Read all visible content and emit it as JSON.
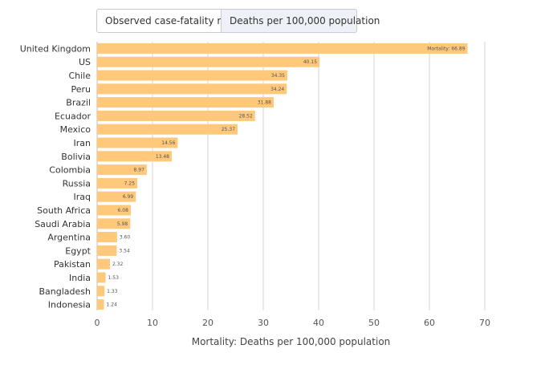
{
  "tabs": [
    {
      "label": "Observed case-fatality ratio",
      "active": false
    },
    {
      "label": "Deaths per 100,000 population",
      "active": true
    }
  ],
  "chart_data": {
    "type": "bar",
    "orientation": "horizontal",
    "categories": [
      "United Kingdom",
      "US",
      "Chile",
      "Peru",
      "Brazil",
      "Ecuador",
      "Mexico",
      "Iran",
      "Bolivia",
      "Colombia",
      "Russia",
      "Iraq",
      "South Africa",
      "Saudi Arabia",
      "Argentina",
      "Egypt",
      "Pakistan",
      "India",
      "Bangladesh",
      "Indonesia"
    ],
    "values": [
      66.89,
      40.15,
      34.35,
      34.24,
      31.88,
      28.52,
      25.37,
      14.56,
      13.48,
      8.97,
      7.25,
      6.99,
      6.08,
      5.98,
      3.6,
      3.54,
      2.32,
      1.53,
      1.33,
      1.24
    ],
    "value_labels": [
      "Mortality: 66.89",
      "40.15",
      "34.35",
      "34.24",
      "31.88",
      "28.52",
      "25.37",
      "14.56",
      "13.48",
      "8.97",
      "7.25",
      "6.99",
      "6.08",
      "5.98",
      "3.60",
      "3.54",
      "2.32",
      "1.53",
      "1.33",
      "1.24"
    ],
    "xlabel": "Mortality: Deaths per 100,000 population",
    "ylabel": "",
    "xlim": [
      0,
      70
    ],
    "xticks": [
      0,
      10,
      20,
      30,
      40,
      50,
      60,
      70
    ],
    "grid": true,
    "bar_color": "#ffc87a",
    "grid_color": "#d6d6d6"
  }
}
